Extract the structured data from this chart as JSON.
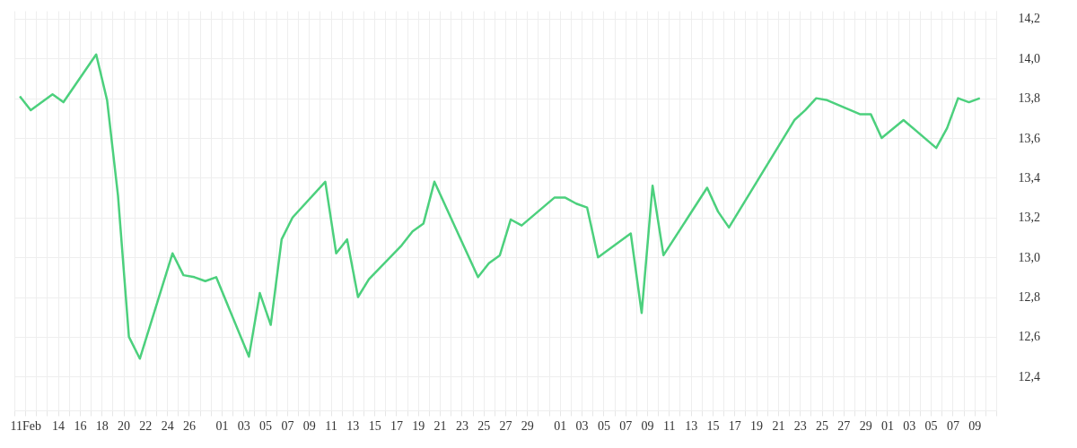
{
  "chart_data": {
    "type": "line",
    "x": [
      "--02-10T12:00",
      "--02-11T12:00",
      "--02-13T12:00",
      "--02-14T12:00",
      "--02-17T12:00",
      "--02-18T12:00",
      "--02-19T12:00",
      "--02-20T12:00",
      "--02-21T12:00",
      "--02-24T12:00",
      "--02-25T12:00",
      "--02-26T12:00",
      "--02-27T12:00",
      "--02-28T12:00",
      "--03-03T12:00",
      "--03-04T12:00",
      "--03-05T12:00",
      "--03-06T12:00",
      "--03-07T12:00",
      "--03-10T12:00",
      "--03-11T12:00",
      "--03-12T12:00",
      "--03-13T12:00",
      "--03-14T12:00",
      "--03-17T12:00",
      "--03-18T12:00",
      "--03-19T12:00",
      "--03-20T12:00",
      "--03-24T12:00",
      "--03-25T12:00",
      "--03-26T12:00",
      "--03-27T12:00",
      "--03-28T12:00",
      "--03-31T12:00",
      "--04-01T12:00",
      "--04-02T12:00",
      "--04-03T12:00",
      "--04-04T12:00",
      "--04-07T12:00",
      "--04-08T12:00",
      "--04-09T12:00",
      "--04-10T12:00",
      "--04-14T12:00",
      "--04-15T12:00",
      "--04-16T12:00",
      "--04-22T12:00",
      "--04-23T12:00",
      "--04-24T12:00",
      "--04-25T12:00",
      "--04-28T12:00",
      "--04-29T12:00",
      "--04-30T12:00",
      "--05-02T12:00",
      "--05-05T12:00",
      "--05-06T12:00",
      "--05-07T12:00",
      "--05-08T12:00",
      "--05-09T12:00"
    ],
    "series": [
      {
        "color": "#4cd07d",
        "values": [
          13.81,
          13.74,
          13.82,
          13.78,
          14.02,
          13.79,
          13.31,
          12.6,
          12.49,
          13.02,
          12.91,
          12.9,
          12.88,
          12.9,
          12.5,
          12.82,
          12.66,
          13.09,
          13.2,
          13.38,
          13.02,
          13.09,
          12.8,
          12.89,
          13.06,
          13.13,
          13.17,
          13.38,
          12.9,
          12.97,
          13.01,
          13.19,
          13.16,
          13.3,
          13.3,
          13.27,
          13.25,
          13.0,
          13.12,
          12.72,
          13.36,
          13.01,
          13.35,
          13.23,
          13.15,
          13.69,
          13.74,
          13.8,
          13.79,
          13.72,
          13.72,
          13.6,
          13.69,
          13.55,
          13.65,
          13.8,
          13.78,
          13.8
        ]
      }
    ],
    "xlim": [
      "--02-10",
      "--05-11"
    ],
    "xticks": [
      {
        "value": "--02-10",
        "label": null
      },
      {
        "value": "--02-11",
        "label": "11Feb"
      },
      {
        "value": "--02-12",
        "label": null
      },
      {
        "value": "--02-13",
        "label": null
      },
      {
        "value": "--02-14",
        "label": "14"
      },
      {
        "value": "--02-15",
        "label": null
      },
      {
        "value": "--02-16",
        "label": "16"
      },
      {
        "value": "--02-17",
        "label": null
      },
      {
        "value": "--02-18",
        "label": "18"
      },
      {
        "value": "--02-19",
        "label": null
      },
      {
        "value": "--02-20",
        "label": "20"
      },
      {
        "value": "--02-21",
        "label": null
      },
      {
        "value": "--02-22",
        "label": "22"
      },
      {
        "value": "--02-23",
        "label": null
      },
      {
        "value": "--02-24",
        "label": "24"
      },
      {
        "value": "--02-25",
        "label": null
      },
      {
        "value": "--02-26",
        "label": "26"
      },
      {
        "value": "--02-27",
        "label": null
      },
      {
        "value": "--02-28",
        "label": null
      },
      {
        "value": "--03-01",
        "label": "01"
      },
      {
        "value": "--03-02",
        "label": null
      },
      {
        "value": "--03-03",
        "label": "03"
      },
      {
        "value": "--03-04",
        "label": null
      },
      {
        "value": "--03-05",
        "label": "05"
      },
      {
        "value": "--03-06",
        "label": null
      },
      {
        "value": "--03-07",
        "label": "07"
      },
      {
        "value": "--03-08",
        "label": null
      },
      {
        "value": "--03-09",
        "label": "09"
      },
      {
        "value": "--03-10",
        "label": null
      },
      {
        "value": "--03-11",
        "label": "11"
      },
      {
        "value": "--03-12",
        "label": null
      },
      {
        "value": "--03-13",
        "label": "13"
      },
      {
        "value": "--03-14",
        "label": null
      },
      {
        "value": "--03-15",
        "label": "15"
      },
      {
        "value": "--03-16",
        "label": null
      },
      {
        "value": "--03-17",
        "label": "17"
      },
      {
        "value": "--03-18",
        "label": null
      },
      {
        "value": "--03-19",
        "label": "19"
      },
      {
        "value": "--03-20",
        "label": null
      },
      {
        "value": "--03-21",
        "label": "21"
      },
      {
        "value": "--03-22",
        "label": null
      },
      {
        "value": "--03-23",
        "label": "23"
      },
      {
        "value": "--03-24",
        "label": null
      },
      {
        "value": "--03-25",
        "label": "25"
      },
      {
        "value": "--03-26",
        "label": null
      },
      {
        "value": "--03-27",
        "label": "27"
      },
      {
        "value": "--03-28",
        "label": null
      },
      {
        "value": "--03-29",
        "label": "29"
      },
      {
        "value": "--03-30",
        "label": null
      },
      {
        "value": "--03-31",
        "label": null
      },
      {
        "value": "--04-01",
        "label": "01"
      },
      {
        "value": "--04-02",
        "label": null
      },
      {
        "value": "--04-03",
        "label": "03"
      },
      {
        "value": "--04-04",
        "label": null
      },
      {
        "value": "--04-05",
        "label": "05"
      },
      {
        "value": "--04-06",
        "label": null
      },
      {
        "value": "--04-07",
        "label": "07"
      },
      {
        "value": "--04-08",
        "label": null
      },
      {
        "value": "--04-09",
        "label": "09"
      },
      {
        "value": "--04-10",
        "label": null
      },
      {
        "value": "--04-11",
        "label": "11"
      },
      {
        "value": "--04-12",
        "label": null
      },
      {
        "value": "--04-13",
        "label": "13"
      },
      {
        "value": "--04-14",
        "label": null
      },
      {
        "value": "--04-15",
        "label": "15"
      },
      {
        "value": "--04-16",
        "label": null
      },
      {
        "value": "--04-17",
        "label": "17"
      },
      {
        "value": "--04-18",
        "label": null
      },
      {
        "value": "--04-19",
        "label": "19"
      },
      {
        "value": "--04-20",
        "label": null
      },
      {
        "value": "--04-21",
        "label": "21"
      },
      {
        "value": "--04-22",
        "label": null
      },
      {
        "value": "--04-23",
        "label": "23"
      },
      {
        "value": "--04-24",
        "label": null
      },
      {
        "value": "--04-25",
        "label": "25"
      },
      {
        "value": "--04-26",
        "label": null
      },
      {
        "value": "--04-27",
        "label": "27"
      },
      {
        "value": "--04-28",
        "label": null
      },
      {
        "value": "--04-29",
        "label": "29"
      },
      {
        "value": "--04-30",
        "label": null
      },
      {
        "value": "--05-01",
        "label": "01"
      },
      {
        "value": "--05-02",
        "label": null
      },
      {
        "value": "--05-03",
        "label": "03"
      },
      {
        "value": "--05-04",
        "label": null
      },
      {
        "value": "--05-05",
        "label": "05"
      },
      {
        "value": "--05-06",
        "label": null
      },
      {
        "value": "--05-07",
        "label": "07"
      },
      {
        "value": "--05-08",
        "label": null
      },
      {
        "value": "--05-09",
        "label": "09"
      },
      {
        "value": "--05-10",
        "label": null
      },
      {
        "value": "--05-11",
        "label": null
      }
    ],
    "ylim": [
      12.23,
      14.24
    ],
    "yticks": [
      {
        "value": 12.4,
        "label": "12,4"
      },
      {
        "value": 12.6,
        "label": "12,6"
      },
      {
        "value": 12.8,
        "label": "12,8"
      },
      {
        "value": 13.0,
        "label": "13,0"
      },
      {
        "value": 13.2,
        "label": "13,2"
      },
      {
        "value": 13.4,
        "label": "13,4"
      },
      {
        "value": 13.6,
        "label": "13,6"
      },
      {
        "value": 13.8,
        "label": "13,8"
      },
      {
        "value": 14.0,
        "label": "14,0"
      },
      {
        "value": 14.2,
        "label": "14,2"
      }
    ],
    "grid": true
  }
}
